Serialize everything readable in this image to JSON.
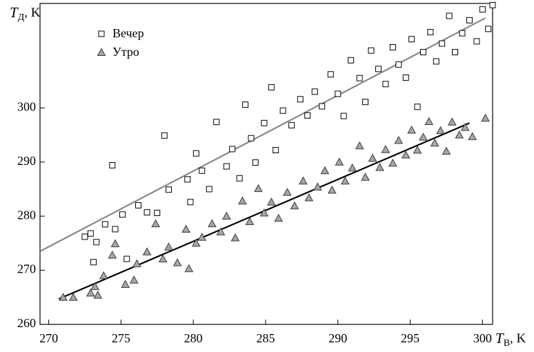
{
  "chart_data": {
    "type": "scatter",
    "x_label": {
      "symbol": "T",
      "subscript": "В",
      "unit": ", K"
    },
    "y_label": {
      "symbol": "T",
      "subscript": "Д",
      "unit": ", K"
    },
    "xlim": [
      269.4,
      300.7
    ],
    "ylim": [
      260,
      319.3
    ],
    "xticks": [
      270,
      275,
      280,
      285,
      290,
      295,
      300
    ],
    "yticks": [
      260,
      270,
      280,
      290,
      300
    ],
    "legend": "upper left",
    "series": [
      {
        "name": "Вечер",
        "marker": "square",
        "color": "#ffffff",
        "edgecolor": "#000000",
        "x": [
          272.5,
          272.9,
          273.1,
          273.3,
          273.9,
          274.4,
          274.6,
          275.1,
          275.4,
          276.2,
          276.8,
          277.5,
          278,
          278.3,
          279.6,
          279.8,
          280.2,
          280.6,
          281.1,
          281.6,
          282.3,
          282.7,
          283.2,
          283.6,
          284.0,
          284.3,
          284.9,
          285.4,
          285.7,
          286.2,
          286.8,
          287.4,
          287.9,
          288.4,
          288.9,
          289.5,
          290.0,
          290.4,
          290.9,
          291.5,
          291.9,
          292.3,
          292.8,
          293.3,
          293.8,
          294.2,
          294.7,
          295.1,
          295.5,
          295.9,
          296.4,
          296.8,
          297.2,
          297.7,
          298.1,
          298.6,
          299.1,
          299.6,
          300.0,
          300.4,
          300.7
        ],
        "values": [
          276.2,
          276.8,
          271.5,
          275.2,
          278.5,
          289.4,
          277.6,
          280.3,
          272.1,
          282.0,
          280.7,
          280.6,
          294.9,
          284.9,
          286.8,
          282.6,
          291.6,
          288.4,
          285.0,
          297.4,
          289.2,
          292.4,
          287.0,
          300.6,
          294.4,
          289.9,
          297.2,
          303.8,
          292.2,
          299.5,
          296.8,
          301.6,
          298.6,
          303.0,
          300.3,
          306.2,
          302.6,
          298.5,
          308.8,
          305.5,
          301.1,
          310.6,
          307.2,
          304.4,
          311.2,
          308.0,
          305.6,
          312.7,
          300.2,
          310.3,
          314.0,
          308.6,
          311.9,
          317.0,
          310.3,
          313.8,
          316.2,
          312.3,
          318.2,
          314.6,
          319.0
        ]
      },
      {
        "name": "Утро",
        "marker": "triangle",
        "color": "#a6a6a6",
        "edgecolor": "#3a3a3a",
        "x": [
          271.0,
          271.7,
          272.9,
          273.2,
          273.4,
          273.8,
          274.4,
          274.6,
          275.3,
          275.9,
          276.1,
          276.8,
          277.4,
          277.9,
          278.3,
          278.9,
          279.5,
          279.7,
          280.2,
          280.6,
          281.3,
          281.9,
          282.3,
          282.9,
          283.4,
          283.9,
          284.5,
          284.9,
          285.4,
          285.9,
          286.5,
          287.0,
          287.6,
          288.0,
          288.6,
          289.1,
          289.6,
          290.1,
          290.5,
          291.0,
          291.5,
          291.9,
          292.4,
          292.9,
          293.3,
          293.8,
          294.2,
          294.7,
          295.1,
          295.5,
          295.9,
          296.3,
          296.7,
          297.1,
          297.5,
          297.9,
          298.4,
          298.8,
          299.3,
          300.2
        ],
        "values": [
          265.0,
          265.0,
          265.8,
          267.0,
          265.4,
          269.0,
          272.8,
          274.9,
          267.4,
          268.2,
          271.2,
          273.4,
          278.6,
          272.1,
          274.3,
          271.4,
          277.6,
          270.3,
          275.0,
          276.1,
          278.6,
          277.1,
          280.0,
          276.0,
          282.8,
          279.0,
          285.1,
          280.6,
          282.6,
          279.6,
          284.4,
          281.9,
          286.5,
          283.4,
          285.4,
          288.4,
          284.8,
          290.0,
          286.5,
          288.9,
          293.0,
          287.2,
          290.7,
          289.0,
          292.3,
          289.8,
          294.0,
          291.3,
          295.9,
          292.2,
          294.6,
          297.5,
          293.5,
          295.8,
          292.0,
          297.4,
          295.0,
          296.4,
          294.7,
          298.1
        ]
      }
    ],
    "fit_lines": [
      {
        "color": "#888888",
        "x": [
          269.4,
          300.2
        ],
        "values": [
          273.5,
          316.6
        ]
      },
      {
        "color": "#000000",
        "x": [
          270.7,
          299.1
        ],
        "values": [
          264.7,
          297.2
        ]
      }
    ]
  }
}
